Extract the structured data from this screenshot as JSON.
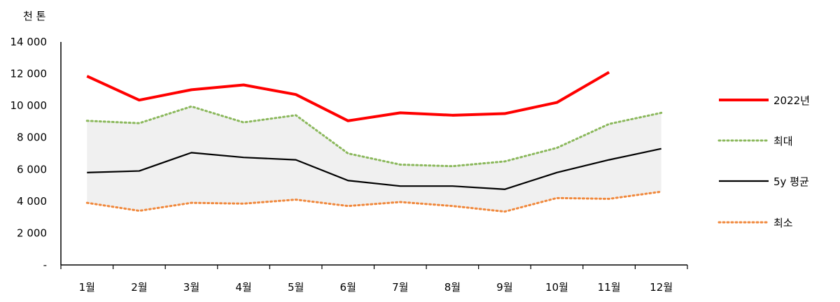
{
  "chart_data": {
    "type": "line",
    "unit_label": "천 톤",
    "categories": [
      "1월",
      "2월",
      "3월",
      "4월",
      "5월",
      "6월",
      "7월",
      "8월",
      "9월",
      "10월",
      "11월",
      "12월"
    ],
    "y_ticks": [
      "-",
      "2 000",
      "4 000",
      "6 000",
      "8 000",
      "10 000",
      "12 000",
      "14 000"
    ],
    "ylim": [
      0,
      14000
    ],
    "band": {
      "between": [
        "최소",
        "최대"
      ],
      "color": "#f0f0f0"
    },
    "series": [
      {
        "name": "2022년",
        "color": "#ff0000",
        "style": "solid-thick",
        "values": [
          11850,
          10350,
          11000,
          11300,
          10700,
          9050,
          9550,
          9400,
          9500,
          10200,
          12100,
          null
        ]
      },
      {
        "name": "최대",
        "color": "#8bb85c",
        "style": "dotted",
        "values": [
          9050,
          8900,
          9950,
          8950,
          9400,
          7000,
          6300,
          6200,
          6500,
          7350,
          8850,
          9550
        ]
      },
      {
        "name": "5y 평균",
        "color": "#000000",
        "style": "solid",
        "values": [
          5800,
          5900,
          7050,
          6750,
          6600,
          5300,
          4950,
          4950,
          4750,
          5800,
          6600,
          7300
        ]
      },
      {
        "name": "최소",
        "color": "#f0883c",
        "style": "dotted",
        "values": [
          3900,
          3400,
          3900,
          3850,
          4100,
          3700,
          3950,
          3700,
          3350,
          4200,
          4150,
          4600
        ]
      }
    ]
  }
}
